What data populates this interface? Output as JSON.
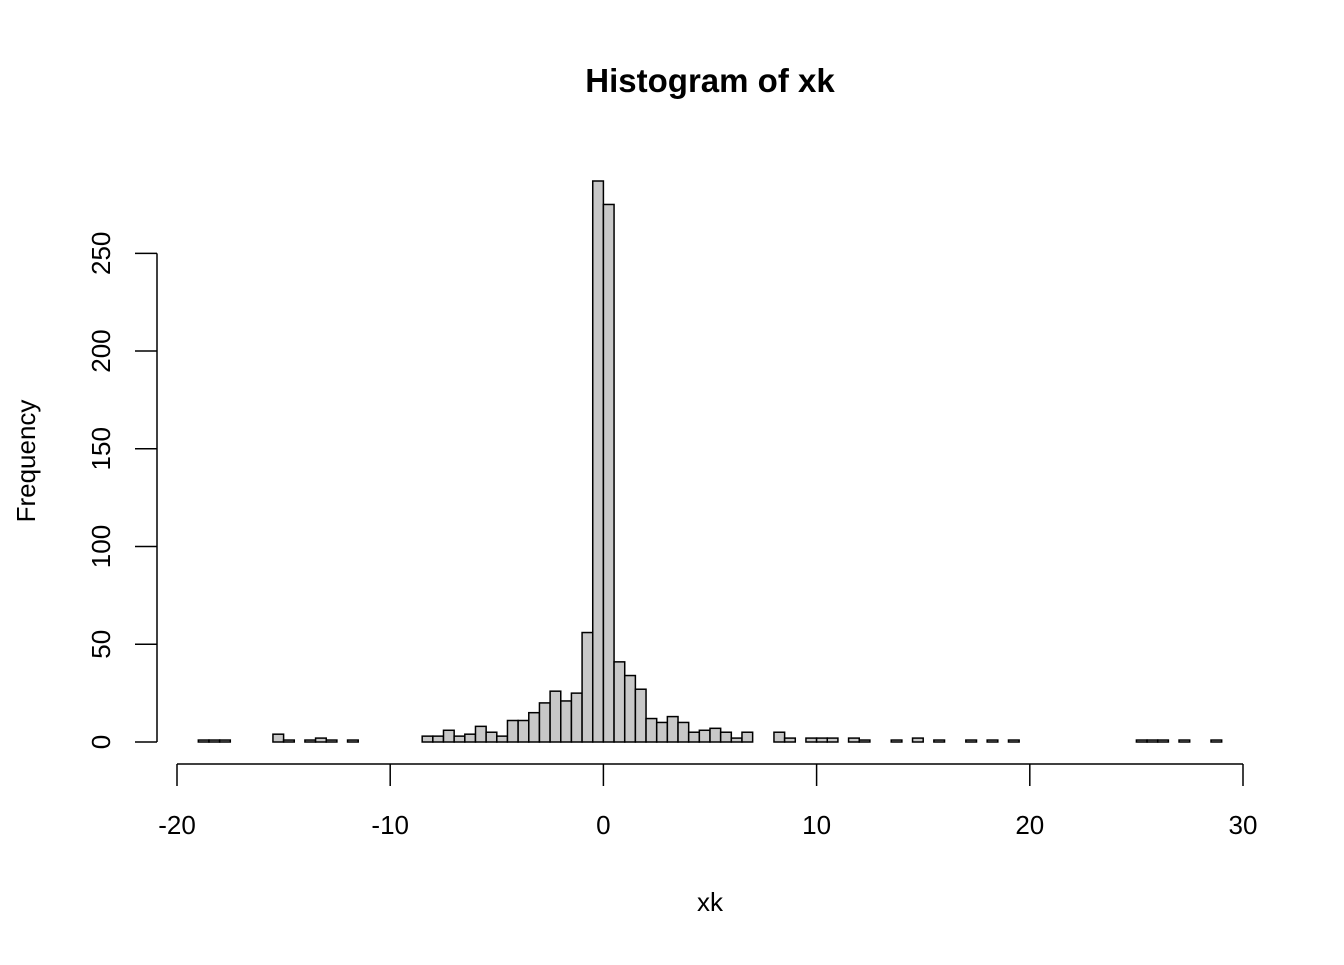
{
  "chart_data": {
    "type": "histogram",
    "title": "Histogram of xk",
    "x_label": "xk",
    "y_label": "Frequency",
    "bins": [
      -19,
      -18.5,
      -18,
      -17.5,
      -17,
      -16.5,
      -16,
      -15.5,
      -15,
      -14.5,
      -14,
      -13.5,
      -13,
      -12.5,
      -12,
      -11.5,
      -11,
      -10.5,
      -10,
      -9.5,
      -9,
      -8.5,
      -8,
      -7.5,
      -7,
      -6.5,
      -6,
      -5.5,
      -5,
      -4.5,
      -4,
      -3.5,
      -3,
      -2.5,
      -2,
      -1.5,
      -1,
      -0.5,
      0,
      0.5,
      1,
      1.5,
      2,
      2.5,
      3,
      3.5,
      4,
      4.5,
      5,
      5.5,
      6,
      6.5,
      7,
      7.5,
      8,
      8.5,
      9,
      9.5,
      10,
      10.5,
      11,
      11.5,
      12,
      12.5,
      13,
      13.5,
      14,
      14.5,
      15,
      15.5,
      16,
      16.5,
      17,
      17.5,
      18,
      18.5,
      19,
      19.5,
      20,
      20.5,
      21,
      21.5,
      22,
      22.5,
      23,
      23.5,
      24,
      24.5,
      25,
      25.5,
      26,
      26.5,
      27,
      27.5,
      28,
      28.5,
      29
    ],
    "values": [
      1,
      1,
      1,
      0,
      0,
      0,
      0,
      4,
      1,
      0,
      1,
      2,
      1,
      0,
      1,
      0,
      0,
      0,
      0,
      0,
      0,
      3,
      3,
      6,
      3,
      4,
      8,
      5,
      3,
      11,
      11,
      15,
      20,
      26,
      21,
      25,
      56,
      287,
      275,
      41,
      34,
      27,
      12,
      10,
      13,
      10,
      5,
      6,
      7,
      5,
      2,
      5,
      0,
      0,
      5,
      2,
      0,
      2,
      2,
      2,
      0,
      2,
      1,
      0,
      0,
      1,
      0,
      2,
      0,
      1,
      0,
      0,
      1,
      0,
      1,
      0,
      1,
      0,
      0,
      0,
      0,
      0,
      0,
      0,
      0,
      0,
      0,
      0,
      1,
      1,
      1,
      0,
      1,
      0,
      0,
      1
    ],
    "color": "#c8c8c8",
    "xlim": [
      -20,
      30
    ],
    "xticks": [
      -20,
      -10,
      0,
      10,
      20,
      30
    ],
    "ylim": [
      0,
      287
    ],
    "yticks": [
      0,
      50,
      100,
      150,
      200,
      250
    ]
  }
}
